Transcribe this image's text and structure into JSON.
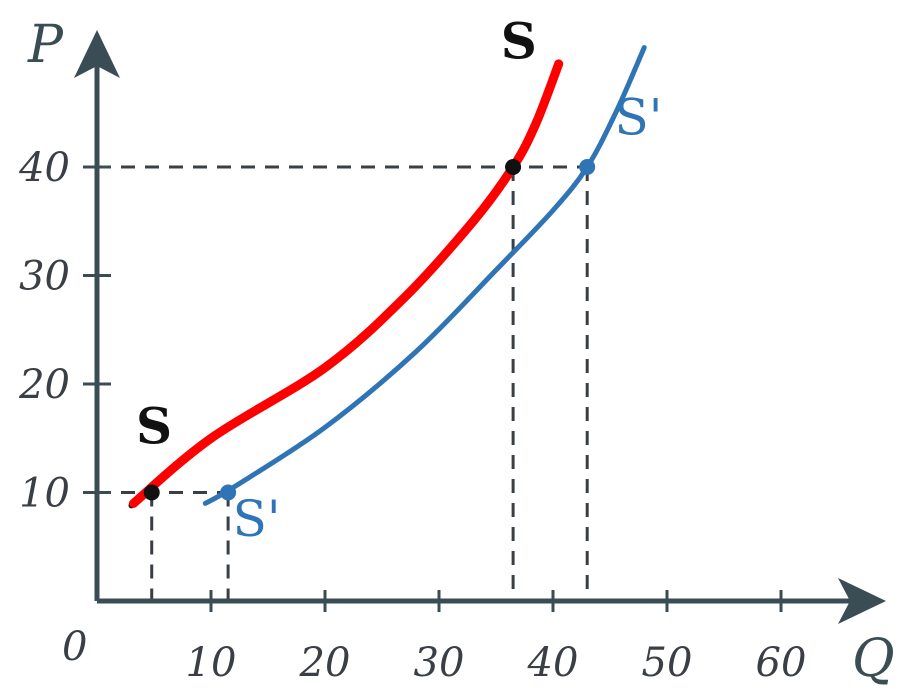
{
  "chart_data": {
    "type": "line",
    "xlabel": "Q",
    "ylabel": "P",
    "origin_label": "0",
    "xlim": [
      0,
      70
    ],
    "ylim": [
      0,
      50
    ],
    "x_ticks": [
      10,
      20,
      30,
      40,
      50,
      60
    ],
    "x_tick_labels": [
      "10",
      "20",
      "30",
      "40",
      "50",
      "60"
    ],
    "y_ticks": [
      10,
      20,
      30,
      40
    ],
    "y_tick_labels": [
      "10",
      "20",
      "30",
      "40"
    ],
    "colors": {
      "axis": "#3a4d55",
      "s_curve": "#111111",
      "s_highlight": "#ff0000",
      "s_prime_curve": "#2f74b5",
      "guides": "#3a3f45"
    },
    "series": [
      {
        "name": "S",
        "color": "#ff0000",
        "points": [
          [
            3.2,
            9
          ],
          [
            10,
            15
          ],
          [
            20,
            21.5
          ],
          [
            27,
            28
          ],
          [
            33,
            35
          ],
          [
            36.5,
            40
          ],
          [
            38.5,
            44
          ],
          [
            40.5,
            49.5
          ]
        ],
        "labels": [
          {
            "text": "S",
            "at": [
              5,
              14.5
            ]
          },
          {
            "text": "S",
            "at": [
              37,
              50
            ]
          }
        ],
        "marked_points": [
          [
            4.8,
            10
          ],
          [
            36.5,
            40
          ]
        ]
      },
      {
        "name": "S'",
        "color": "#2f74b5",
        "points": [
          [
            9.5,
            9
          ],
          [
            12,
            10.5
          ],
          [
            20,
            16
          ],
          [
            28,
            23
          ],
          [
            35,
            30.5
          ],
          [
            40,
            36
          ],
          [
            43,
            40
          ],
          [
            45.5,
            45
          ],
          [
            48,
            51
          ]
        ],
        "labels": [
          {
            "text": "S'",
            "at": [
              14,
              6
            ]
          },
          {
            "text": "S'",
            "at": [
              47.5,
              43
            ]
          }
        ],
        "marked_points": [
          [
            11.5,
            10
          ],
          [
            43,
            40
          ]
        ]
      }
    ],
    "guides": [
      {
        "x": 4.8,
        "y": 10
      },
      {
        "x": 11.5,
        "y": 10
      },
      {
        "x": 36.5,
        "y": 40
      },
      {
        "x": 43,
        "y": 40
      }
    ]
  }
}
